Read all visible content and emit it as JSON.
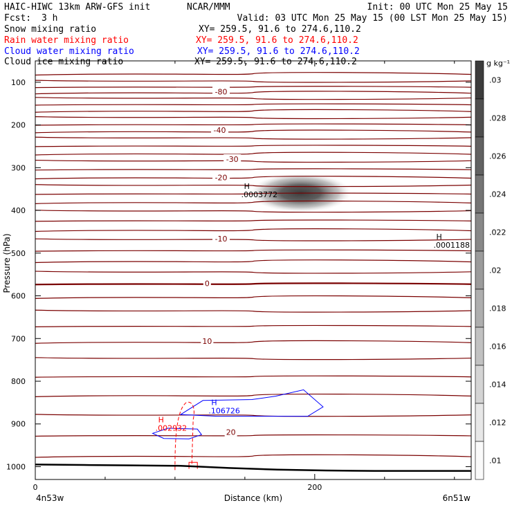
{
  "header": {
    "title_left": "HAIC-HIWC 13km ARW-GFS init",
    "org": "NCAR/MMM",
    "init": "Init: 00 UTC Mon 25 May 15",
    "fcst_label": "Fcst:",
    "fcst_value": "3 h",
    "valid": "Valid: 03 UTC Mon 25 May 15 (00 LST Mon 25 May 15)",
    "fields": [
      {
        "name": "Snow mixing ratio",
        "xy": "XY= 259.5, 91.6 to 274.6,110.2",
        "color": "#000000"
      },
      {
        "name": "Rain water mixing ratio",
        "xy": "XY= 259.5, 91.6 to 274.6,110.2",
        "color": "#ff0000"
      },
      {
        "name": "Cloud water mixing ratio",
        "xy": "XY= 259.5, 91.6 to 274.6,110.2",
        "color": "#0000ff"
      },
      {
        "name": "Cloud ice mixing ratio",
        "xy": "XY= 259.5, 91.6 to 274.6,110.2",
        "color": "#000000"
      }
    ]
  },
  "chart_data": {
    "type": "cross-section",
    "xlabel": "Distance (km)",
    "ylabel": "Pressure (hPa)",
    "x_ticks": [
      0,
      200
    ],
    "x_minor_ticks": [
      50,
      100,
      150,
      250,
      300
    ],
    "xlim": [
      0,
      312
    ],
    "y_ticks": [
      100,
      200,
      300,
      400,
      500,
      600,
      700,
      800,
      900,
      1000
    ],
    "ylim": [
      1030,
      50
    ],
    "x_start_label": "4n53w",
    "x_end_label": "6n51w",
    "temperature_contours": {
      "units": "C",
      "color": "#7a0000",
      "labels": [
        {
          "text": "-80",
          "x": 133,
          "p": 122
        },
        {
          "text": "-40",
          "x": 132,
          "p": 212
        },
        {
          "text": "-30",
          "x": 141,
          "p": 280
        },
        {
          "text": "-20",
          "x": 133,
          "p": 323
        },
        {
          "text": "-10",
          "x": 133,
          "p": 466
        },
        {
          "text": "0",
          "x": 123,
          "p": 571
        },
        {
          "text": "10",
          "x": 123,
          "p": 706
        },
        {
          "text": "20",
          "x": 140,
          "p": 919
        }
      ],
      "levels_p": [
        80,
        98,
        111,
        124,
        138,
        152,
        167,
        183,
        199,
        215,
        231,
        249,
        267,
        285,
        304,
        323,
        342,
        361,
        381,
        402,
        424,
        446,
        469,
        494,
        519,
        545,
        572,
        603,
        636,
        671,
        708,
        747,
        789,
        833,
        880,
        927,
        975
      ],
      "bold_level_p": 572
    },
    "snow_shading": {
      "center_x": 190,
      "center_p": 359,
      "max_label": ".0003772",
      "h_label": "H"
    },
    "secondary_max": {
      "x": 285,
      "p": 478,
      "label": ".0001188",
      "h_label": "H"
    },
    "cloud_water": {
      "h_label": "H",
      "max_label": ".106726",
      "x": 124,
      "p": 862
    },
    "rain_water": {
      "h_label": "H",
      "max_label": ".002932",
      "x": 86,
      "p": 903
    },
    "terrain_p": [
      995,
      996,
      997,
      998,
      1003,
      1007,
      1009,
      1010,
      1010,
      1010
    ],
    "colorbar": {
      "units_label": "g kg⁻¹",
      "ticks": [
        ".03",
        ".028",
        ".026",
        ".024",
        ".022",
        ".02",
        ".018",
        ".016",
        ".014",
        ".012",
        ".01"
      ]
    }
  }
}
